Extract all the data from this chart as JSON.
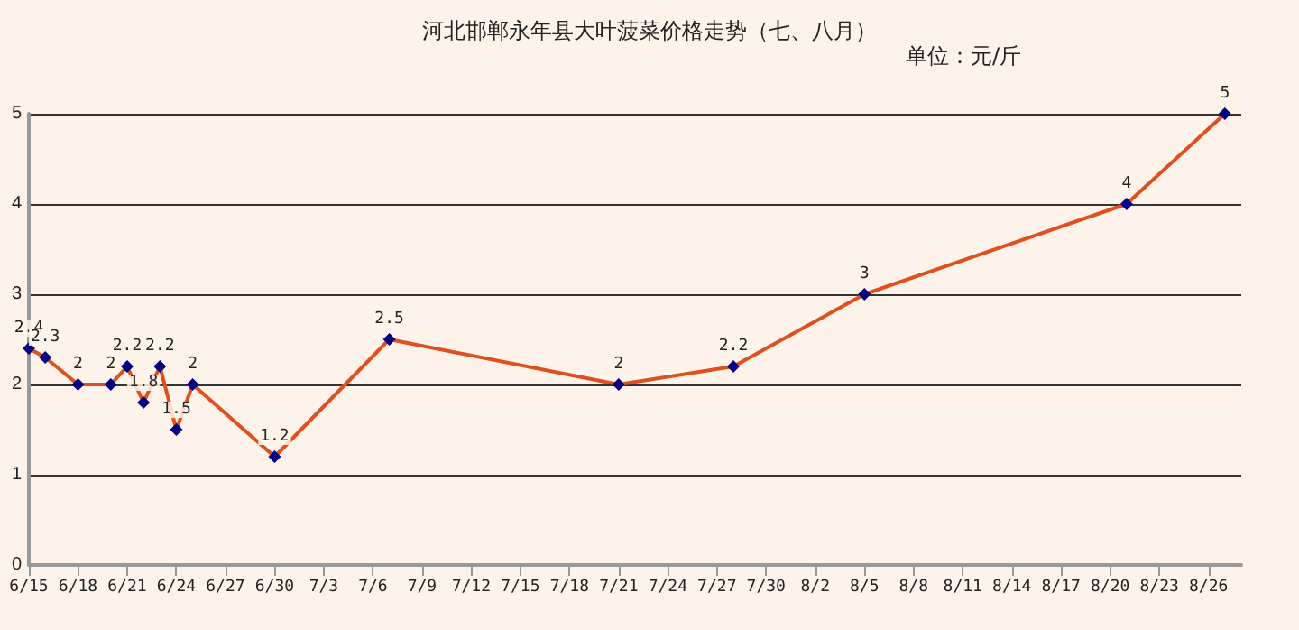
{
  "chart_data": {
    "type": "line",
    "title": "河北邯郸永年县大叶菠菜价格走势（七、八月）",
    "subtitle": "单位：元/斤",
    "x": [
      "--06-15",
      "--06-16",
      "--06-18",
      "--06-20",
      "--06-21",
      "--06-22",
      "--06-23",
      "--06-24",
      "--06-25",
      "--06-30",
      "--07-07",
      "--07-21",
      "--07-28",
      "--08-05",
      "--08-21",
      "--08-27"
    ],
    "series": [
      {
        "color": "#e0501e",
        "values": [
          2.4,
          2.3,
          2,
          2,
          2.2,
          1.8,
          2.2,
          1.5,
          2,
          1.2,
          2.5,
          2,
          2.2,
          3,
          4,
          5
        ]
      }
    ],
    "xlim": [
      "--06-15",
      "--08-28"
    ],
    "xticks": [
      {
        "value": "--06-15",
        "label": "6/15"
      },
      {
        "value": "--06-18",
        "label": "6/18"
      },
      {
        "value": "--06-21",
        "label": "6/21"
      },
      {
        "value": "--06-24",
        "label": "6/24"
      },
      {
        "value": "--06-27",
        "label": "6/27"
      },
      {
        "value": "--06-30",
        "label": "6/30"
      },
      {
        "value": "--07-03",
        "label": "7/3"
      },
      {
        "value": "--07-06",
        "label": "7/6"
      },
      {
        "value": "--07-09",
        "label": "7/9"
      },
      {
        "value": "--07-12",
        "label": "7/12"
      },
      {
        "value": "--07-15",
        "label": "7/15"
      },
      {
        "value": "--07-18",
        "label": "7/18"
      },
      {
        "value": "--07-21",
        "label": "7/21"
      },
      {
        "value": "--07-24",
        "label": "7/24"
      },
      {
        "value": "--07-27",
        "label": "7/27"
      },
      {
        "value": "--07-30",
        "label": "7/30"
      },
      {
        "value": "--08-02",
        "label": "8/2"
      },
      {
        "value": "--08-05",
        "label": "8/5"
      },
      {
        "value": "--08-08",
        "label": "8/8"
      },
      {
        "value": "--08-11",
        "label": "8/11"
      },
      {
        "value": "--08-14",
        "label": "8/14"
      },
      {
        "value": "--08-17",
        "label": "8/17"
      },
      {
        "value": "--08-20",
        "label": "8/20"
      },
      {
        "value": "--08-23",
        "label": "8/23"
      },
      {
        "value": "--08-26",
        "label": "8/26"
      }
    ],
    "ylim": [
      0,
      5
    ],
    "yticks": [
      0,
      1,
      2,
      3,
      4,
      5
    ],
    "grid": "y",
    "marker": "diamond",
    "line_style": "solid",
    "data_labels": true
  }
}
